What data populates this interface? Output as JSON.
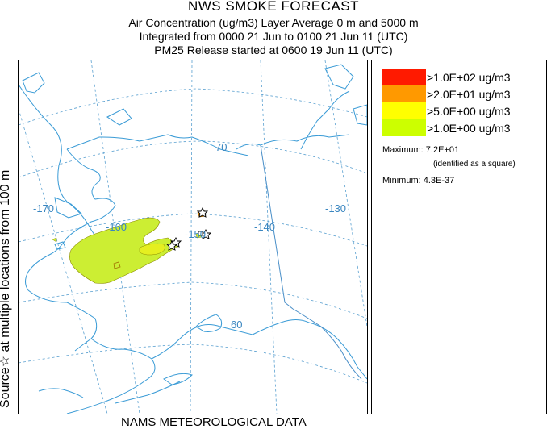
{
  "header": {
    "title": "NWS SMOKE FORECAST",
    "line2": "Air Concentration (ug/m3) Layer Average    0 m and  5000 m",
    "line3": "Integrated from 0000 21 Jun to 0100 21 Jun 11 (UTC)",
    "line4": "PM25 Release started at 0600 19 Jun 11 (UTC)"
  },
  "side_label": "Source☆  at multiple locations  from   100 m",
  "footer": "NAMS METEOROLOGICAL DATA",
  "map": {
    "grid_labels": [
      "-170",
      "-160",
      "-150",
      "-140",
      "-130",
      "70",
      "60"
    ],
    "colors": {
      "coast": "#3a9bd6",
      "grid": "#5aa0d0",
      "smoke_light": "#ccee33",
      "smoke_mid": "#eef000",
      "smoke_orange": "#ff9900"
    }
  },
  "legend": {
    "items": [
      {
        "label": ">1.0E+02 ug/m3",
        "color": "#ff1a00"
      },
      {
        "label": ">2.0E+01 ug/m3",
        "color": "#ff9900"
      },
      {
        "label": ">5.0E+00 ug/m3",
        "color": "#ffff00"
      },
      {
        "label": ">1.0E+00 ug/m3",
        "color": "#ccff00"
      }
    ],
    "maximum": "Maximum: 7.2E+01",
    "maximum_note": "(identified as a square)",
    "minimum": "Minimum: 4.3E-37"
  }
}
